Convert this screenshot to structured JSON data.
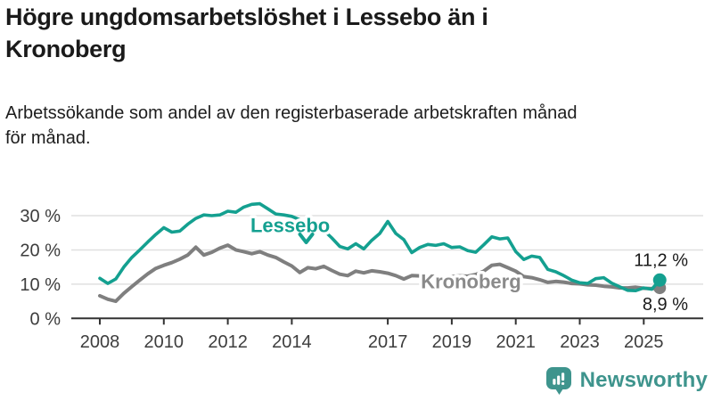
{
  "header": {
    "title_lines": [
      "Högre ungdomsarbetslöshet i Lessebo än i",
      "Kronoberg"
    ],
    "subtitle_lines": [
      "Arbetssökande som andel av den registerbaserade arbetskraften månad",
      "för månad."
    ]
  },
  "chart_data": {
    "type": "line",
    "unit": "%",
    "x_start": 2008.0,
    "x_step": 0.25,
    "x_ticks": [
      2008,
      2010,
      2012,
      2014,
      2017,
      2019,
      2021,
      2023,
      2025
    ],
    "x_tick_labels": [
      "2008",
      "2010",
      "2012",
      "2014",
      "2017",
      "2019",
      "2021",
      "2023",
      "2025"
    ],
    "y_ticks": [
      0,
      10,
      20,
      30
    ],
    "y_tick_labels": [
      "0 %",
      "10 %",
      "20 %",
      "30 %"
    ],
    "ylim": [
      0,
      35
    ],
    "grid": "horizontal-only",
    "series": [
      {
        "name": "Kronoberg",
        "color": "#7f7f7f",
        "label_color": "#8a8a8a",
        "line_width": 4,
        "dot_radius": 7,
        "end_value": 8.9,
        "end_label": "8,9 %",
        "end_label_position": "below",
        "values": [
          6.6,
          5.6,
          5.0,
          7.3,
          9.3,
          11.2,
          13.0,
          14.6,
          15.5,
          16.3,
          17.3,
          18.5,
          20.8,
          18.5,
          19.3,
          20.5,
          21.4,
          20.0,
          19.5,
          18.9,
          19.5,
          18.5,
          17.8,
          16.5,
          15.3,
          13.4,
          14.8,
          14.5,
          15.2,
          14.0,
          12.9,
          12.5,
          13.8,
          13.3,
          13.9,
          13.6,
          13.2,
          12.5,
          11.5,
          12.5,
          12.4,
          12.0,
          11.8,
          12.0,
          12.2,
          12.4,
          12.3,
          12.8,
          13.8,
          15.5,
          15.8,
          14.8,
          13.8,
          12.2,
          11.9,
          11.3,
          10.5,
          10.8,
          10.6,
          10.2,
          10.1,
          9.8,
          9.7,
          9.4,
          9.2,
          8.9,
          8.9,
          9.1,
          8.8,
          8.7,
          8.9
        ]
      },
      {
        "name": "Lessebo",
        "color": "#14a090",
        "label_color": "#14a090",
        "line_width": 3.6,
        "dot_radius": 7.5,
        "end_value": 11.2,
        "end_label": "11,2 %",
        "end_label_position": "above",
        "values": [
          11.7,
          10.2,
          11.5,
          15.0,
          17.8,
          20.0,
          22.3,
          24.5,
          26.5,
          25.2,
          25.5,
          27.5,
          29.2,
          30.2,
          30.0,
          30.2,
          31.3,
          31.0,
          32.5,
          33.3,
          33.5,
          32.0,
          30.5,
          30.2,
          29.8,
          28.8,
          27.8,
          26.8,
          25.7,
          23.5,
          21.0,
          20.3,
          21.8,
          20.3,
          22.8,
          24.8,
          28.3,
          24.8,
          23.0,
          19.2,
          20.7,
          21.6,
          21.3,
          21.8,
          20.7,
          20.9,
          19.8,
          19.3,
          21.5,
          23.8,
          23.2,
          23.5,
          19.5,
          17.2,
          18.2,
          17.8,
          14.3,
          13.6,
          12.5,
          11.2,
          10.4,
          10.2,
          11.6,
          11.9,
          10.3,
          9.2,
          8.2,
          8.1,
          8.9,
          8.5,
          11.2
        ]
      }
    ],
    "annotations": [
      {
        "label": "Lessebo",
        "x": 2013.95,
        "y": 27.0,
        "color": "#14a090",
        "arrow": {
          "x": 2014.45,
          "y": 22.2
        }
      },
      {
        "label": "Kronoberg",
        "x": 2019.6,
        "y": 10.6,
        "color": "#8a8a8a"
      }
    ]
  },
  "logo": {
    "text": "Newsworthy",
    "brand_color": "#3e948d"
  }
}
